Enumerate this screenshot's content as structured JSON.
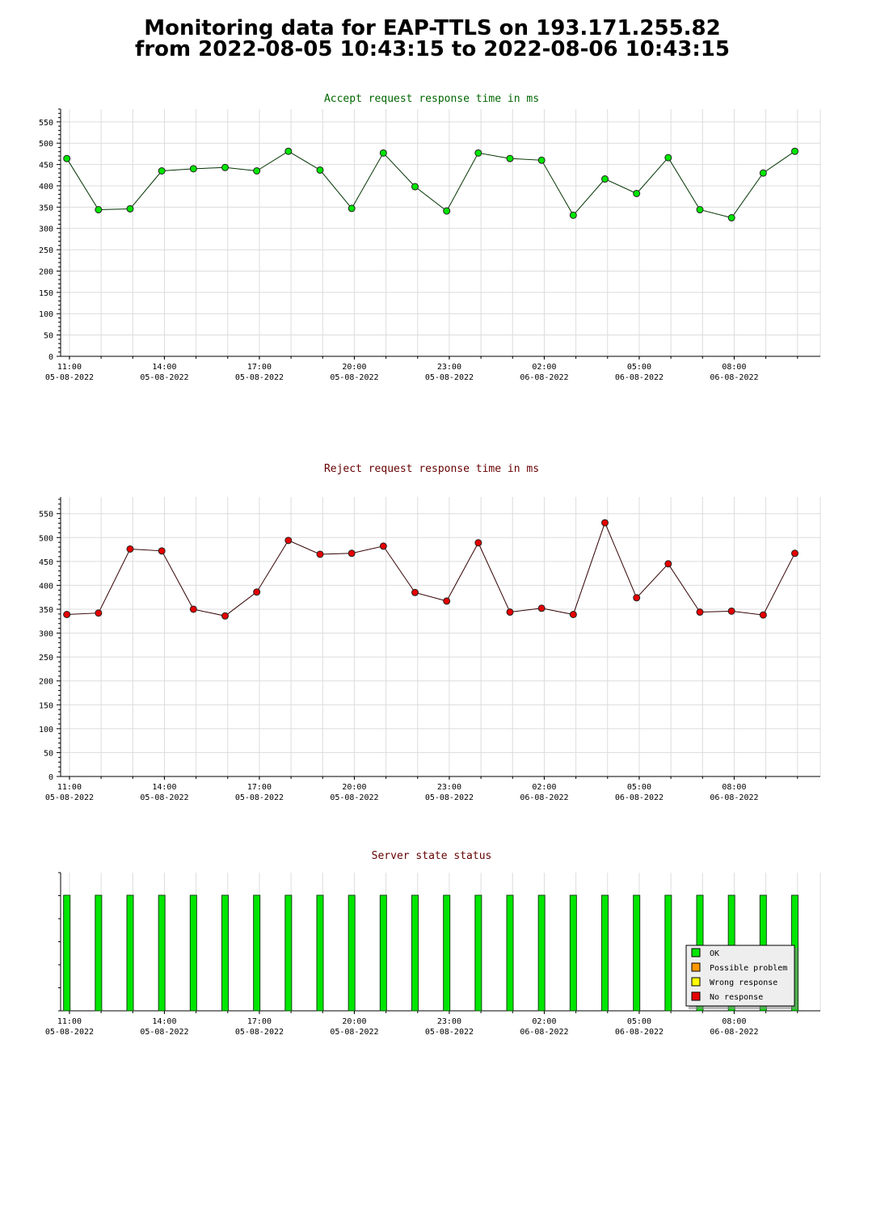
{
  "title_line1": "Monitoring data for EAP-TTLS on 193.171.255.82",
  "title_line2": "from 2022-08-05 10:43:15 to 2022-08-06 10:43:15",
  "x_axis_ticks": [
    {
      "time": "11:00",
      "date": "05-08-2022"
    },
    {
      "time": "14:00",
      "date": "05-08-2022"
    },
    {
      "time": "17:00",
      "date": "05-08-2022"
    },
    {
      "time": "20:00",
      "date": "05-08-2022"
    },
    {
      "time": "23:00",
      "date": "05-08-2022"
    },
    {
      "time": "02:00",
      "date": "06-08-2022"
    },
    {
      "time": "05:00",
      "date": "06-08-2022"
    },
    {
      "time": "08:00",
      "date": "06-08-2022"
    }
  ],
  "chart_data": [
    {
      "type": "line",
      "title": "Accept request response time in ms",
      "title_color": "#006600",
      "line_color": "#003300",
      "marker_color": "#00e600",
      "x_range": [
        "2022-08-05 10:43:15",
        "2022-08-06 10:43:15"
      ],
      "ylim": [
        0,
        580
      ],
      "yticks": [
        0,
        50,
        100,
        150,
        200,
        250,
        300,
        350,
        400,
        450,
        500,
        550
      ],
      "grid": true,
      "x": [
        "2022-08-05 10:55",
        "2022-08-05 11:55",
        "2022-08-05 12:55",
        "2022-08-05 13:55",
        "2022-08-05 14:55",
        "2022-08-05 15:55",
        "2022-08-05 16:55",
        "2022-08-05 17:55",
        "2022-08-05 18:55",
        "2022-08-05 19:55",
        "2022-08-05 20:55",
        "2022-08-05 21:55",
        "2022-08-05 22:55",
        "2022-08-05 23:55",
        "2022-08-06 00:55",
        "2022-08-06 01:55",
        "2022-08-06 02:55",
        "2022-08-06 03:55",
        "2022-08-06 04:55",
        "2022-08-06 05:55",
        "2022-08-06 06:55",
        "2022-08-06 07:55",
        "2022-08-06 08:55",
        "2022-08-06 09:55"
      ],
      "values": [
        464,
        344,
        346,
        435,
        440,
        443,
        435,
        481,
        437,
        347,
        477,
        398,
        341,
        477,
        464,
        460,
        331,
        416,
        382,
        466,
        344,
        325,
        430,
        481
      ]
    },
    {
      "type": "line",
      "title": "Reject request response time in ms",
      "title_color": "#660000",
      "line_color": "#330000",
      "marker_color": "#e60000",
      "x_range": [
        "2022-08-05 10:43:15",
        "2022-08-06 10:43:15"
      ],
      "ylim": [
        0,
        585
      ],
      "yticks": [
        0,
        50,
        100,
        150,
        200,
        250,
        300,
        350,
        400,
        450,
        500,
        550
      ],
      "grid": true,
      "x": [
        "2022-08-05 10:55",
        "2022-08-05 11:55",
        "2022-08-05 12:55",
        "2022-08-05 13:55",
        "2022-08-05 14:55",
        "2022-08-05 15:55",
        "2022-08-05 16:55",
        "2022-08-05 17:55",
        "2022-08-05 18:55",
        "2022-08-05 19:55",
        "2022-08-05 20:55",
        "2022-08-05 21:55",
        "2022-08-05 22:55",
        "2022-08-05 23:55",
        "2022-08-06 00:55",
        "2022-08-06 01:55",
        "2022-08-06 02:55",
        "2022-08-06 03:55",
        "2022-08-06 04:55",
        "2022-08-06 05:55",
        "2022-08-06 06:55",
        "2022-08-06 07:55",
        "2022-08-06 08:55",
        "2022-08-06 09:55"
      ],
      "values": [
        339,
        342,
        476,
        472,
        350,
        336,
        386,
        494,
        465,
        467,
        482,
        385,
        367,
        489,
        344,
        352,
        339,
        531,
        374,
        445,
        344,
        346,
        338,
        467
      ]
    },
    {
      "type": "bar",
      "title": "Server state status",
      "title_color": "#660000",
      "x_range": [
        "2022-08-05 10:43:15",
        "2022-08-06 10:43:15"
      ],
      "x": [
        "2022-08-05 10:55",
        "2022-08-05 11:55",
        "2022-08-05 12:55",
        "2022-08-05 13:55",
        "2022-08-05 14:55",
        "2022-08-05 15:55",
        "2022-08-05 16:55",
        "2022-08-05 17:55",
        "2022-08-05 18:55",
        "2022-08-05 19:55",
        "2022-08-05 20:55",
        "2022-08-05 21:55",
        "2022-08-05 22:55",
        "2022-08-05 23:55",
        "2022-08-06 00:55",
        "2022-08-06 01:55",
        "2022-08-06 02:55",
        "2022-08-06 03:55",
        "2022-08-06 04:55",
        "2022-08-06 05:55",
        "2022-08-06 06:55",
        "2022-08-06 07:55",
        "2022-08-06 08:55",
        "2022-08-06 09:55"
      ],
      "states": [
        "OK",
        "OK",
        "OK",
        "OK",
        "OK",
        "OK",
        "OK",
        "OK",
        "OK",
        "OK",
        "OK",
        "OK",
        "OK",
        "OK",
        "OK",
        "OK",
        "OK",
        "OK",
        "OK",
        "OK",
        "OK",
        "OK",
        "OK",
        "OK"
      ],
      "legend_position": "bottom-right",
      "legend": [
        {
          "label": "OK",
          "color": "#00e600"
        },
        {
          "label": "Possible problem",
          "color": "#ff9900"
        },
        {
          "label": "Wrong response",
          "color": "#ffff00"
        },
        {
          "label": "No response",
          "color": "#e60000"
        }
      ]
    }
  ]
}
